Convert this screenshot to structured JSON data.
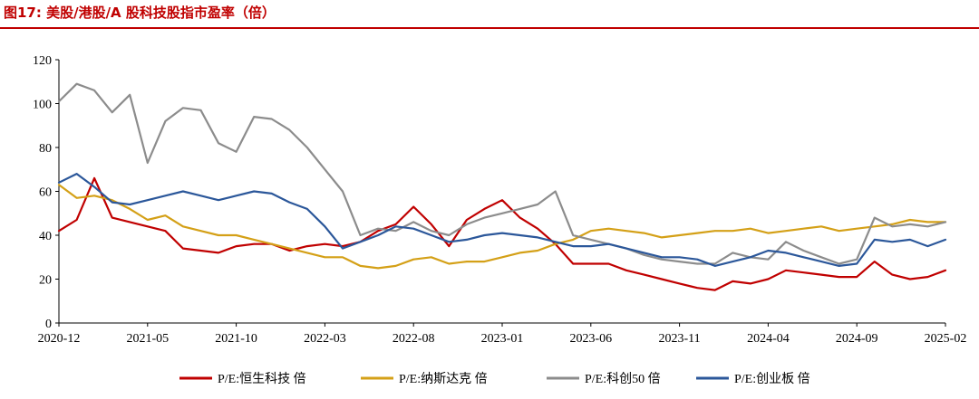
{
  "figure": {
    "title": "图17:  美股/港股/A 股科技股指市盈率（倍）"
  },
  "colors": {
    "header": "#c00000",
    "axis": "#000000"
  },
  "chart_data": {
    "type": "line",
    "x_tick_labels": [
      "2020-12",
      "2021-05",
      "2021-10",
      "2022-03",
      "2022-08",
      "2023-01",
      "2023-06",
      "2023-11",
      "2024-04",
      "2024-09",
      "2025-02"
    ],
    "x_range": [
      "2020-12",
      "2025-02"
    ],
    "ylim": [
      0,
      120
    ],
    "y_ticks": [
      0,
      20,
      40,
      60,
      80,
      100,
      120
    ],
    "y_tick_labels": [
      "0",
      "20",
      "40",
      "60",
      "80",
      "100",
      "120"
    ],
    "grid": false,
    "legend_position": "bottom",
    "series": [
      {
        "name": "P/E:恒生科技 倍",
        "color": "#c00000",
        "points": [
          [
            "2020-12",
            42
          ],
          [
            "2021-01",
            47
          ],
          [
            "2021-02",
            66
          ],
          [
            "2021-03",
            48
          ],
          [
            "2021-04",
            46
          ],
          [
            "2021-05",
            44
          ],
          [
            "2021-06",
            42
          ],
          [
            "2021-07",
            34
          ],
          [
            "2021-08",
            33
          ],
          [
            "2021-09",
            32
          ],
          [
            "2021-10",
            35
          ],
          [
            "2021-11",
            36
          ],
          [
            "2021-12",
            36
          ],
          [
            "2022-01",
            33
          ],
          [
            "2022-02",
            35
          ],
          [
            "2022-03",
            36
          ],
          [
            "2022-04",
            35
          ],
          [
            "2022-05",
            37
          ],
          [
            "2022-06",
            42
          ],
          [
            "2022-07",
            45
          ],
          [
            "2022-08",
            53
          ],
          [
            "2022-09",
            45
          ],
          [
            "2022-10",
            35
          ],
          [
            "2022-11",
            47
          ],
          [
            "2022-12",
            52
          ],
          [
            "2023-01",
            56
          ],
          [
            "2023-02",
            48
          ],
          [
            "2023-03",
            43
          ],
          [
            "2023-04",
            36
          ],
          [
            "2023-05",
            27
          ],
          [
            "2023-06",
            27
          ],
          [
            "2023-07",
            27
          ],
          [
            "2023-08",
            24
          ],
          [
            "2023-09",
            22
          ],
          [
            "2023-10",
            20
          ],
          [
            "2023-11",
            18
          ],
          [
            "2023-12",
            16
          ],
          [
            "2024-01",
            15
          ],
          [
            "2024-02",
            19
          ],
          [
            "2024-03",
            18
          ],
          [
            "2024-04",
            20
          ],
          [
            "2024-05",
            24
          ],
          [
            "2024-06",
            23
          ],
          [
            "2024-07",
            22
          ],
          [
            "2024-08",
            21
          ],
          [
            "2024-09",
            21
          ],
          [
            "2024-10",
            28
          ],
          [
            "2024-11",
            22
          ],
          [
            "2024-12",
            20
          ],
          [
            "2025-01",
            21
          ],
          [
            "2025-02",
            24
          ]
        ]
      },
      {
        "name": "P/E:纳斯达克 倍",
        "color": "#d4a017",
        "points": [
          [
            "2020-12",
            63
          ],
          [
            "2021-01",
            57
          ],
          [
            "2021-02",
            58
          ],
          [
            "2021-03",
            56
          ],
          [
            "2021-04",
            52
          ],
          [
            "2021-05",
            47
          ],
          [
            "2021-06",
            49
          ],
          [
            "2021-07",
            44
          ],
          [
            "2021-08",
            42
          ],
          [
            "2021-09",
            40
          ],
          [
            "2021-10",
            40
          ],
          [
            "2021-11",
            38
          ],
          [
            "2021-12",
            36
          ],
          [
            "2022-01",
            34
          ],
          [
            "2022-02",
            32
          ],
          [
            "2022-03",
            30
          ],
          [
            "2022-04",
            30
          ],
          [
            "2022-05",
            26
          ],
          [
            "2022-06",
            25
          ],
          [
            "2022-07",
            26
          ],
          [
            "2022-08",
            29
          ],
          [
            "2022-09",
            30
          ],
          [
            "2022-10",
            27
          ],
          [
            "2022-11",
            28
          ],
          [
            "2022-12",
            28
          ],
          [
            "2023-01",
            30
          ],
          [
            "2023-02",
            32
          ],
          [
            "2023-03",
            33
          ],
          [
            "2023-04",
            36
          ],
          [
            "2023-05",
            38
          ],
          [
            "2023-06",
            42
          ],
          [
            "2023-07",
            43
          ],
          [
            "2023-08",
            42
          ],
          [
            "2023-09",
            41
          ],
          [
            "2023-10",
            39
          ],
          [
            "2023-11",
            40
          ],
          [
            "2023-12",
            41
          ],
          [
            "2024-01",
            42
          ],
          [
            "2024-02",
            42
          ],
          [
            "2024-03",
            43
          ],
          [
            "2024-04",
            41
          ],
          [
            "2024-05",
            42
          ],
          [
            "2024-06",
            43
          ],
          [
            "2024-07",
            44
          ],
          [
            "2024-08",
            42
          ],
          [
            "2024-09",
            43
          ],
          [
            "2024-10",
            44
          ],
          [
            "2024-11",
            45
          ],
          [
            "2024-12",
            47
          ],
          [
            "2025-01",
            46
          ],
          [
            "2025-02",
            46
          ]
        ]
      },
      {
        "name": "P/E:科创50 倍",
        "color": "#8c8c8c",
        "points": [
          [
            "2020-12",
            101
          ],
          [
            "2021-01",
            109
          ],
          [
            "2021-02",
            106
          ],
          [
            "2021-03",
            96
          ],
          [
            "2021-04",
            104
          ],
          [
            "2021-05",
            73
          ],
          [
            "2021-06",
            92
          ],
          [
            "2021-07",
            98
          ],
          [
            "2021-08",
            97
          ],
          [
            "2021-09",
            82
          ],
          [
            "2021-10",
            78
          ],
          [
            "2021-11",
            94
          ],
          [
            "2021-12",
            93
          ],
          [
            "2022-01",
            88
          ],
          [
            "2022-02",
            80
          ],
          [
            "2022-03",
            70
          ],
          [
            "2022-04",
            60
          ],
          [
            "2022-05",
            40
          ],
          [
            "2022-06",
            43
          ],
          [
            "2022-07",
            42
          ],
          [
            "2022-08",
            46
          ],
          [
            "2022-09",
            42
          ],
          [
            "2022-10",
            40
          ],
          [
            "2022-11",
            45
          ],
          [
            "2022-12",
            48
          ],
          [
            "2023-01",
            50
          ],
          [
            "2023-02",
            52
          ],
          [
            "2023-03",
            54
          ],
          [
            "2023-04",
            60
          ],
          [
            "2023-05",
            40
          ],
          [
            "2023-06",
            38
          ],
          [
            "2023-07",
            36
          ],
          [
            "2023-08",
            34
          ],
          [
            "2023-09",
            31
          ],
          [
            "2023-10",
            29
          ],
          [
            "2023-11",
            28
          ],
          [
            "2023-12",
            27
          ],
          [
            "2024-01",
            27
          ],
          [
            "2024-02",
            32
          ],
          [
            "2024-03",
            30
          ],
          [
            "2024-04",
            29
          ],
          [
            "2024-05",
            37
          ],
          [
            "2024-06",
            33
          ],
          [
            "2024-07",
            30
          ],
          [
            "2024-08",
            27
          ],
          [
            "2024-09",
            29
          ],
          [
            "2024-10",
            48
          ],
          [
            "2024-11",
            44
          ],
          [
            "2024-12",
            45
          ],
          [
            "2025-01",
            44
          ],
          [
            "2025-02",
            46
          ]
        ]
      },
      {
        "name": "P/E:创业板 倍",
        "color": "#2b579a",
        "points": [
          [
            "2020-12",
            64
          ],
          [
            "2021-01",
            68
          ],
          [
            "2021-02",
            62
          ],
          [
            "2021-03",
            55
          ],
          [
            "2021-04",
            54
          ],
          [
            "2021-05",
            56
          ],
          [
            "2021-06",
            58
          ],
          [
            "2021-07",
            60
          ],
          [
            "2021-08",
            58
          ],
          [
            "2021-09",
            56
          ],
          [
            "2021-10",
            58
          ],
          [
            "2021-11",
            60
          ],
          [
            "2021-12",
            59
          ],
          [
            "2022-01",
            55
          ],
          [
            "2022-02",
            52
          ],
          [
            "2022-03",
            44
          ],
          [
            "2022-04",
            34
          ],
          [
            "2022-05",
            37
          ],
          [
            "2022-06",
            40
          ],
          [
            "2022-07",
            44
          ],
          [
            "2022-08",
            43
          ],
          [
            "2022-09",
            40
          ],
          [
            "2022-10",
            37
          ],
          [
            "2022-11",
            38
          ],
          [
            "2022-12",
            40
          ],
          [
            "2023-01",
            41
          ],
          [
            "2023-02",
            40
          ],
          [
            "2023-03",
            39
          ],
          [
            "2023-04",
            37
          ],
          [
            "2023-05",
            35
          ],
          [
            "2023-06",
            35
          ],
          [
            "2023-07",
            36
          ],
          [
            "2023-08",
            34
          ],
          [
            "2023-09",
            32
          ],
          [
            "2023-10",
            30
          ],
          [
            "2023-11",
            30
          ],
          [
            "2023-12",
            29
          ],
          [
            "2024-01",
            26
          ],
          [
            "2024-02",
            28
          ],
          [
            "2024-03",
            30
          ],
          [
            "2024-04",
            33
          ],
          [
            "2024-05",
            32
          ],
          [
            "2024-06",
            30
          ],
          [
            "2024-07",
            28
          ],
          [
            "2024-08",
            26
          ],
          [
            "2024-09",
            27
          ],
          [
            "2024-10",
            38
          ],
          [
            "2024-11",
            37
          ],
          [
            "2024-12",
            38
          ],
          [
            "2025-01",
            35
          ],
          [
            "2025-02",
            38
          ]
        ]
      }
    ]
  }
}
